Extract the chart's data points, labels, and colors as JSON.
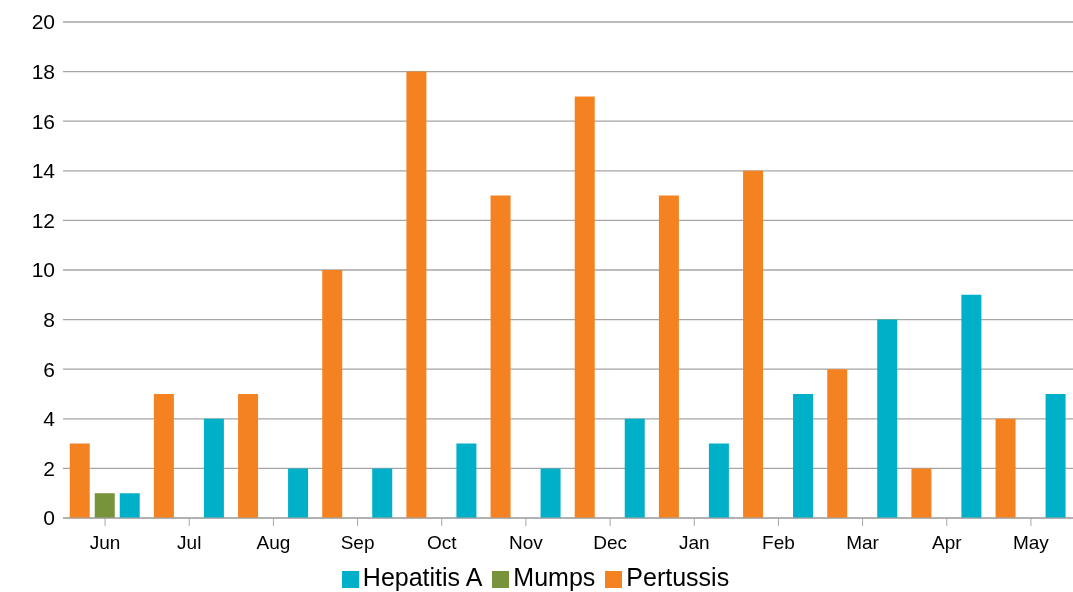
{
  "chart_data": {
    "type": "bar",
    "categories": [
      "Jun",
      "Jul",
      "Aug",
      "Sep",
      "Oct",
      "Nov",
      "Dec",
      "Jan",
      "Feb",
      "Mar",
      "Apr",
      "May"
    ],
    "series": [
      {
        "name": "Pertussis",
        "color": "#f58220",
        "values": [
          3,
          5,
          5,
          10,
          18,
          13,
          17,
          13,
          14,
          6,
          2,
          4
        ]
      },
      {
        "name": "Mumps",
        "color": "#77933c",
        "values": [
          1,
          0,
          0,
          0,
          0,
          0,
          0,
          0,
          0,
          0,
          0,
          0
        ]
      },
      {
        "name": "Hepatitis A",
        "color": "#00afc8",
        "values": [
          1,
          4,
          2,
          2,
          3,
          2,
          4,
          3,
          5,
          8,
          9,
          5
        ]
      }
    ],
    "ylim": [
      0,
      20
    ],
    "yticks": [
      0,
      2,
      4,
      6,
      8,
      10,
      12,
      14,
      16,
      18,
      20
    ],
    "grid": "y",
    "legend": "bottom"
  }
}
